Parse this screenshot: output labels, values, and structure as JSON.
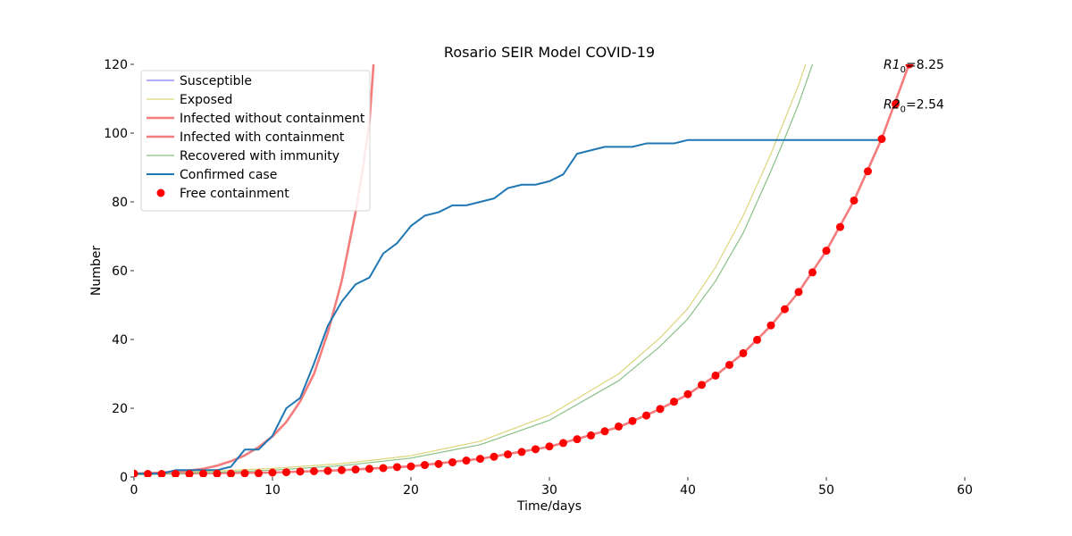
{
  "chart_data": {
    "type": "line",
    "title": "Rosario SEIR Model COVID-19",
    "xlabel": "Time/days",
    "ylabel": "Number",
    "xlim": [
      0,
      60
    ],
    "ylim": [
      0,
      120
    ],
    "xticks": [
      0,
      10,
      20,
      30,
      40,
      50,
      60
    ],
    "yticks": [
      0,
      20,
      40,
      60,
      80,
      100,
      120
    ],
    "legend_position": "top-left",
    "grid": false,
    "annotations": [
      {
        "base": "R1",
        "sub": "0",
        "rest": "=8.25",
        "x": 54.0,
        "y": 120
      },
      {
        "base": "R2",
        "sub": "0",
        "rest": "=2.54",
        "x": 54.0,
        "y": 108.5
      }
    ],
    "series": [
      {
        "name": "Susceptible",
        "color": "#8080ff",
        "style": "line-thin",
        "x": [],
        "y": []
      },
      {
        "name": "Exposed",
        "color": "#dcd67a",
        "style": "line-thin",
        "x": [
          0,
          5,
          10,
          15,
          20,
          25,
          30,
          35,
          38,
          40,
          42,
          44,
          46,
          47,
          48,
          48.5
        ],
        "y": [
          1.0,
          1.6,
          2.5,
          3.9,
          6.2,
          10.4,
          18.0,
          30.0,
          40.5,
          49.0,
          61.0,
          76.0,
          94.0,
          104.0,
          114.0,
          120.0
        ]
      },
      {
        "name": "Infected without containment",
        "color": "#f47c7c",
        "style": "line-thick",
        "x": [
          0,
          2,
          4,
          5,
          6,
          7,
          8,
          9,
          10,
          11,
          12,
          13,
          14,
          15,
          16,
          16.5,
          17,
          17.3
        ],
        "y": [
          1.0,
          1.3,
          1.9,
          2.4,
          3.3,
          4.6,
          6.3,
          8.7,
          11.8,
          16.0,
          22.0,
          30.0,
          42.0,
          57.0,
          77.0,
          89.0,
          103.0,
          120.0
        ]
      },
      {
        "name": "Infected with containment",
        "color": "#f47c7c",
        "style": "line-thick",
        "x": [
          0,
          5,
          10,
          15,
          20,
          25,
          30,
          35,
          38,
          40,
          42,
          44,
          46,
          48,
          50,
          52,
          54,
          56
        ],
        "y": [
          1.0,
          1.1,
          1.3,
          2.0,
          3.1,
          5.3,
          8.8,
          14.5,
          19.8,
          24.0,
          29.5,
          36.0,
          44.0,
          53.8,
          65.8,
          80.4,
          98.4,
          120.3
        ]
      },
      {
        "name": "Recovered with immunity",
        "color": "#88c088",
        "style": "line-thin",
        "x": [
          0,
          5,
          10,
          15,
          20,
          25,
          30,
          35,
          38,
          40,
          42,
          44,
          46,
          47,
          48,
          49
        ],
        "y": [
          0.6,
          1.2,
          2.0,
          3.3,
          5.5,
          9.4,
          16.5,
          28.0,
          38.0,
          46.0,
          57.0,
          71.0,
          89.0,
          98.5,
          108.5,
          120.0
        ]
      },
      {
        "name": "Confirmed case",
        "color": "#1f77b4",
        "style": "line-medium",
        "x": [
          0,
          1,
          2,
          3,
          4,
          5,
          6,
          7,
          8,
          9,
          10,
          11,
          12,
          13,
          14,
          15,
          16,
          17,
          18,
          19,
          20,
          21,
          22,
          23,
          24,
          25,
          26,
          27,
          28,
          29,
          30,
          31,
          32,
          33,
          34,
          35,
          36,
          37,
          38,
          39,
          40,
          41,
          42,
          43,
          44,
          45,
          46,
          47,
          48,
          49,
          50,
          51,
          52,
          53,
          54
        ],
        "y": [
          1,
          1,
          1,
          2,
          2,
          2,
          2,
          3,
          8,
          8,
          12,
          20,
          23,
          33,
          44,
          51,
          56,
          58,
          65,
          68,
          73,
          76,
          77,
          79,
          79,
          80,
          81,
          84,
          85,
          85,
          86,
          88,
          94,
          95,
          96,
          96,
          96,
          97,
          97,
          97,
          98,
          98,
          98,
          98,
          98,
          98,
          98,
          98,
          98,
          98,
          98,
          98,
          98,
          98,
          98
        ]
      },
      {
        "name": "Free containment",
        "color": "#ff0000",
        "style": "markers",
        "x": [
          0,
          1,
          2,
          3,
          4,
          5,
          6,
          7,
          8,
          9,
          10,
          11,
          12,
          13,
          14,
          15,
          16,
          17,
          18,
          19,
          20,
          21,
          22,
          23,
          24,
          25,
          26,
          27,
          28,
          29,
          30,
          31,
          32,
          33,
          34,
          35,
          36,
          37,
          38,
          39,
          40,
          41,
          42,
          43,
          44,
          45,
          46,
          47,
          48,
          49,
          50,
          51,
          52,
          53,
          54,
          55,
          56
        ],
        "y": [
          1.0,
          0.9,
          0.9,
          0.9,
          0.9,
          1.0,
          1.0,
          1.0,
          1.1,
          1.1,
          1.3,
          1.4,
          1.6,
          1.7,
          1.8,
          2.0,
          2.2,
          2.4,
          2.6,
          2.9,
          3.1,
          3.5,
          3.8,
          4.3,
          4.8,
          5.3,
          5.9,
          6.6,
          7.3,
          8.1,
          8.9,
          9.9,
          11.0,
          12.1,
          13.3,
          14.7,
          16.3,
          17.9,
          19.8,
          21.9,
          24.1,
          26.8,
          29.5,
          32.6,
          36.0,
          39.9,
          44.1,
          48.8,
          53.8,
          59.5,
          65.8,
          72.7,
          80.4,
          88.9,
          98.3,
          108.5,
          120.0
        ]
      }
    ]
  }
}
